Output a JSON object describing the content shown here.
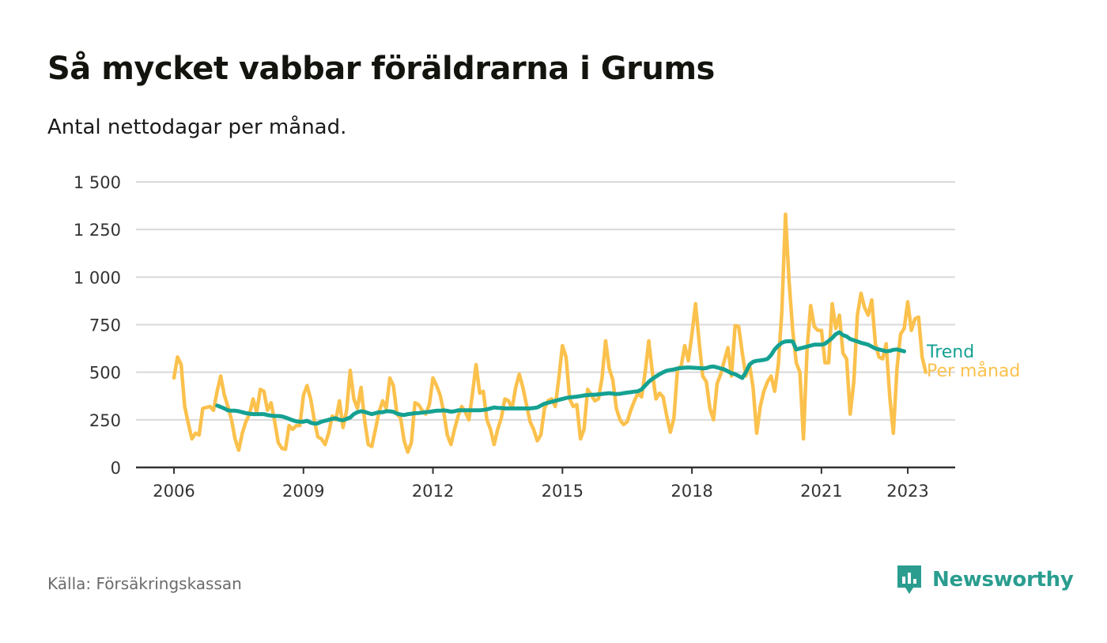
{
  "header": {
    "title": "Så mycket vabbar föräldrarna i Grums",
    "subtitle": "Antal nettodagar per månad."
  },
  "footer": {
    "source": "Källa: Försäkringskassan",
    "brand": "Newsworthy",
    "brand_icon": "bar-chart-badge-icon"
  },
  "colors": {
    "per_manad": "#fbc14d",
    "trend": "#15a192",
    "grid": "#d9d9d9",
    "axis": "#333333",
    "brand": "#2a9d8f"
  },
  "chart_data": {
    "type": "line",
    "title": "Så mycket vabbar föräldrarna i Grums",
    "subtitle": "Antal nettodagar per månad.",
    "xlabel": "",
    "ylabel": "",
    "x_start": "2006-01",
    "x_end": "2023-05",
    "x_ticks": [
      {
        "x": 2006,
        "label": "2006"
      },
      {
        "x": 2009,
        "label": "2009"
      },
      {
        "x": 2012,
        "label": "2012"
      },
      {
        "x": 2015,
        "label": "2015"
      },
      {
        "x": 2018,
        "label": "2018"
      },
      {
        "x": 2021,
        "label": "2021"
      },
      {
        "x": 2023,
        "label": "2023"
      }
    ],
    "y_ticks": [
      {
        "y": 0,
        "label": "0"
      },
      {
        "y": 250,
        "label": "250"
      },
      {
        "y": 500,
        "label": "500"
      },
      {
        "y": 750,
        "label": "750"
      },
      {
        "y": 1000,
        "label": "1 000"
      },
      {
        "y": 1250,
        "label": "1 250"
      },
      {
        "y": 1500,
        "label": "1 500"
      }
    ],
    "ylim": [
      0,
      1500
    ],
    "grid": true,
    "legend": "end-of-line labels",
    "series": [
      {
        "name": "Per månad",
        "x_start": "2006-01",
        "values": [
          470,
          580,
          540,
          320,
          230,
          150,
          180,
          170,
          310,
          315,
          320,
          300,
          400,
          480,
          380,
          320,
          250,
          150,
          90,
          180,
          240,
          280,
          360,
          290,
          410,
          400,
          300,
          340,
          240,
          130,
          100,
          95,
          220,
          200,
          220,
          220,
          380,
          430,
          360,
          250,
          160,
          150,
          120,
          180,
          270,
          250,
          350,
          210,
          300,
          510,
          360,
          310,
          420,
          250,
          120,
          110,
          200,
          290,
          350,
          310,
          470,
          430,
          280,
          260,
          140,
          80,
          130,
          340,
          330,
          300,
          280,
          330,
          470,
          430,
          380,
          290,
          170,
          120,
          200,
          270,
          320,
          290,
          250,
          390,
          540,
          390,
          400,
          250,
          200,
          120,
          200,
          260,
          360,
          350,
          310,
          420,
          490,
          420,
          330,
          240,
          200,
          140,
          170,
          310,
          350,
          360,
          320,
          470,
          640,
          580,
          360,
          320,
          330,
          150,
          200,
          410,
          380,
          350,
          360,
          470,
          665,
          520,
          460,
          310,
          250,
          225,
          240,
          300,
          350,
          390,
          370,
          500,
          665,
          500,
          360,
          390,
          370,
          270,
          185,
          260,
          520,
          530,
          640,
          560,
          700,
          860,
          660,
          480,
          450,
          310,
          250,
          440,
          490,
          560,
          630,
          480,
          745,
          740,
          600,
          480,
          540,
          420,
          180,
          320,
          400,
          450,
          480,
          400,
          540,
          820,
          1330,
          980,
          720,
          550,
          500,
          150,
          620,
          850,
          740,
          720,
          720,
          550,
          550,
          860,
          730,
          800,
          600,
          570,
          280,
          450,
          800,
          915,
          840,
          800,
          880,
          650,
          580,
          570,
          650,
          370,
          180,
          520,
          700,
          730,
          870,
          720,
          780,
          790,
          580,
          500
        ]
      },
      {
        "name": "Trend",
        "x_start": "2007-01",
        "values": [
          325,
          318,
          310,
          300,
          298,
          298,
          295,
          290,
          285,
          282,
          280,
          280,
          280,
          280,
          275,
          272,
          270,
          270,
          268,
          262,
          255,
          248,
          242,
          240,
          240,
          245,
          235,
          230,
          232,
          240,
          245,
          250,
          255,
          258,
          250,
          248,
          255,
          262,
          280,
          290,
          295,
          292,
          286,
          280,
          285,
          290,
          290,
          295,
          295,
          292,
          283,
          278,
          275,
          280,
          282,
          285,
          286,
          288,
          290,
          292,
          295,
          298,
          298,
          300,
          297,
          293,
          295,
          300,
          300,
          300,
          300,
          300,
          300,
          300,
          302,
          305,
          310,
          315,
          313,
          312,
          310,
          310,
          310,
          310,
          310,
          310,
          310,
          310,
          312,
          315,
          325,
          335,
          340,
          345,
          350,
          355,
          360,
          365,
          368,
          370,
          372,
          375,
          378,
          380,
          382,
          382,
          384,
          386,
          388,
          390,
          388,
          385,
          387,
          390,
          393,
          395,
          398,
          400,
          410,
          430,
          450,
          465,
          478,
          490,
          500,
          508,
          512,
          515,
          520,
          522,
          524,
          525,
          524,
          523,
          522,
          520,
          522,
          528,
          530,
          525,
          520,
          515,
          505,
          495,
          490,
          480,
          470,
          500,
          540,
          555,
          560,
          562,
          565,
          570,
          590,
          620,
          640,
          655,
          662,
          663,
          662,
          620,
          625,
          630,
          635,
          640,
          645,
          645,
          645,
          650,
          665,
          680,
          700,
          710,
          695,
          688,
          675,
          668,
          662,
          655,
          650,
          645,
          635,
          625,
          620,
          615,
          610,
          612,
          618,
          620,
          615,
          610
        ]
      }
    ]
  }
}
